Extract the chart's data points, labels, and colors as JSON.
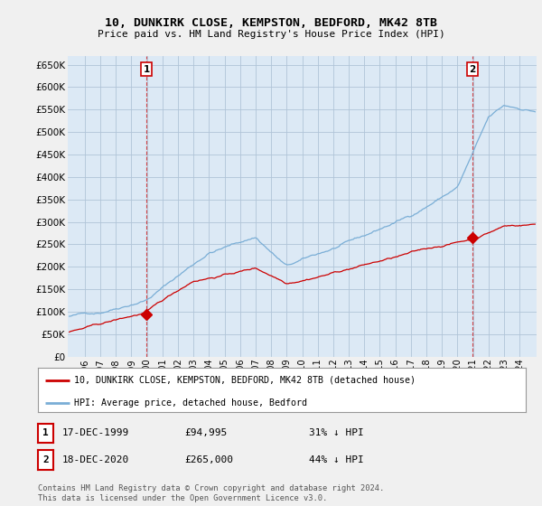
{
  "title": "10, DUNKIRK CLOSE, KEMPSTON, BEDFORD, MK42 8TB",
  "subtitle": "Price paid vs. HM Land Registry's House Price Index (HPI)",
  "ylim": [
    0,
    670000
  ],
  "yticks": [
    0,
    50000,
    100000,
    150000,
    200000,
    250000,
    300000,
    350000,
    400000,
    450000,
    500000,
    550000,
    600000,
    650000
  ],
  "bg_color": "#f0f0f0",
  "plot_bg_color": "#dce9f5",
  "grid_color": "#b0c4d8",
  "hpi_color": "#7aaed6",
  "price_color": "#cc0000",
  "sale1_year": 1999.96,
  "sale1_value": 94995,
  "sale2_year": 2020.96,
  "sale2_value": 265000,
  "legend_label1": "10, DUNKIRK CLOSE, KEMPSTON, BEDFORD, MK42 8TB (detached house)",
  "legend_label2": "HPI: Average price, detached house, Bedford",
  "table_rows": [
    {
      "label": "1",
      "date": "17-DEC-1999",
      "price": "£94,995",
      "hpi": "31% ↓ HPI"
    },
    {
      "label": "2",
      "date": "18-DEC-2020",
      "price": "£265,000",
      "hpi": "44% ↓ HPI"
    }
  ],
  "footer": "Contains HM Land Registry data © Crown copyright and database right 2024.\nThis data is licensed under the Open Government Licence v3.0.",
  "x_start_year": 1995,
  "x_end_year": 2025,
  "x_tick_years": [
    1996,
    1997,
    1998,
    1999,
    2000,
    2001,
    2002,
    2003,
    2004,
    2005,
    2006,
    2007,
    2008,
    2009,
    2010,
    2011,
    2012,
    2013,
    2014,
    2015,
    2016,
    2017,
    2018,
    2019,
    2020,
    2021,
    2022,
    2023,
    2024
  ]
}
